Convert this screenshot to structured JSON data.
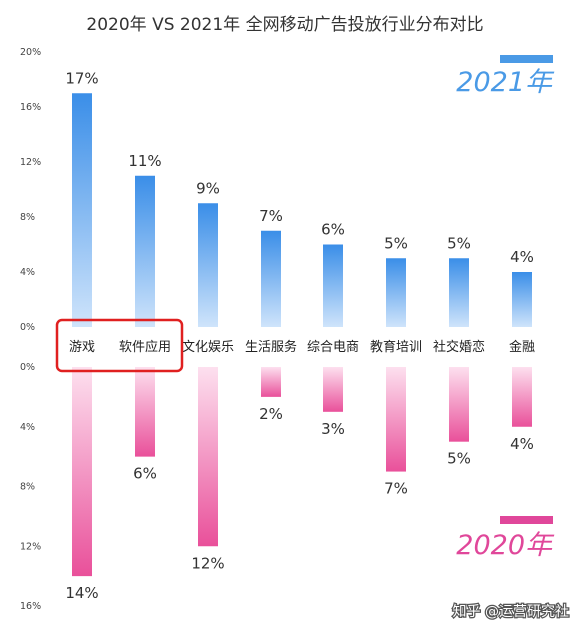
{
  "title": "2020年 VS 2021年 全网移动广告投放行业分布对比",
  "colors": {
    "blue_top": "#3a8ee8",
    "blue_bottom": "#cfe4fb",
    "pink_top": "#fde0ef",
    "pink_bottom": "#e9509a",
    "highlight_box": "#e02020",
    "year_2021": "#4a9ae6",
    "year_2020": "#e0479a"
  },
  "legend": {
    "year_2021": "2021年",
    "year_2020": "2020年"
  },
  "watermark": "知乎 @运营研究社",
  "highlighted_categories": [
    "游戏",
    "软件应用"
  ],
  "chart_data": {
    "type": "bar",
    "categories": [
      "游戏",
      "软件应用",
      "文化娱乐",
      "生活服务",
      "综合电商",
      "教育培训",
      "社交婚恋",
      "金融"
    ],
    "series": [
      {
        "name": "2021年",
        "direction": "up",
        "values": [
          17,
          11,
          9,
          7,
          6,
          5,
          5,
          4
        ],
        "labels": [
          "17%",
          "11%",
          "9%",
          "7%",
          "6%",
          "5%",
          "5%",
          "4%"
        ]
      },
      {
        "name": "2020年",
        "direction": "down",
        "values": [
          14,
          6,
          12,
          2,
          3,
          7,
          5,
          4
        ],
        "labels": [
          "14%",
          "6%",
          "12%",
          "2%",
          "3%",
          "7%",
          "5%",
          "4%"
        ]
      }
    ],
    "upper_axis": {
      "ylim": [
        0,
        20
      ],
      "ticks": [
        "0%",
        "4%",
        "8%",
        "12%",
        "16%",
        "20%"
      ]
    },
    "lower_axis": {
      "ylim": [
        0,
        16
      ],
      "ticks": [
        "0%",
        "4%",
        "8%",
        "12%",
        "16%"
      ]
    },
    "grid": false
  }
}
